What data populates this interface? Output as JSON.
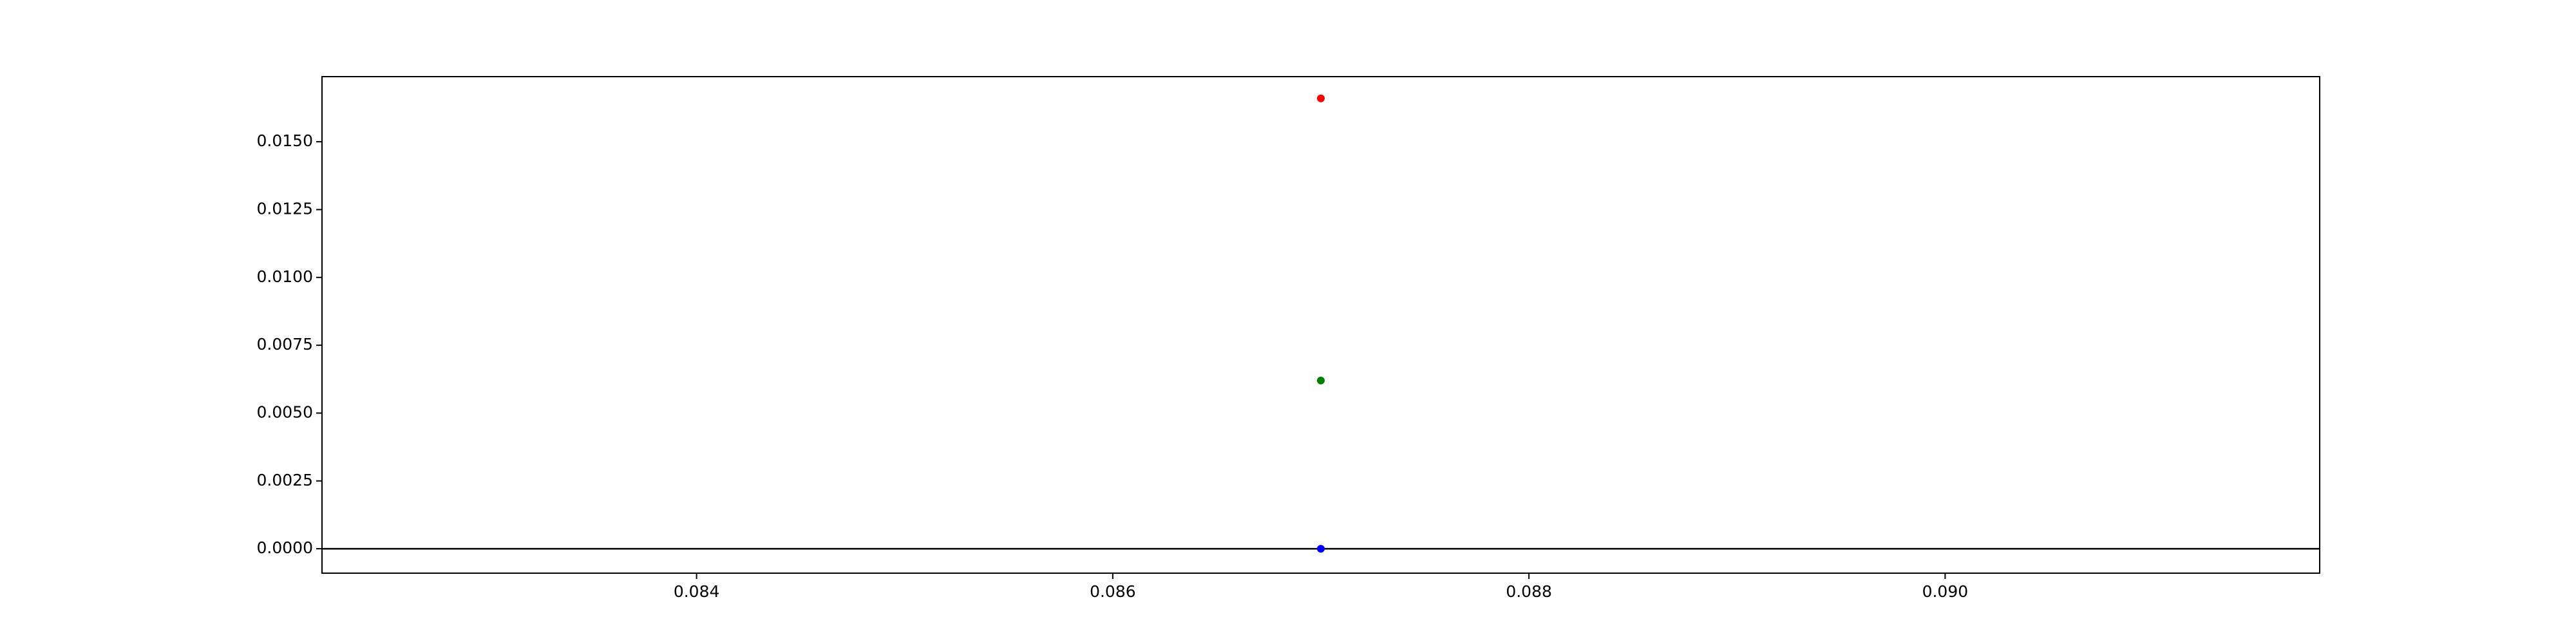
{
  "chart_data": {
    "type": "scatter",
    "title": "",
    "xlabel": "",
    "ylabel": "",
    "xlim": [
      0.0822,
      0.0918
    ],
    "ylim": [
      -0.0009,
      0.0174
    ],
    "x_ticks": [
      {
        "value": 0.084,
        "label": "0.084"
      },
      {
        "value": 0.086,
        "label": "0.086"
      },
      {
        "value": 0.088,
        "label": "0.088"
      },
      {
        "value": 0.09,
        "label": "0.090"
      }
    ],
    "y_ticks": [
      {
        "value": 0.0,
        "label": "0.0000"
      },
      {
        "value": 0.0025,
        "label": "0.0025"
      },
      {
        "value": 0.005,
        "label": "0.0050"
      },
      {
        "value": 0.0075,
        "label": "0.0075"
      },
      {
        "value": 0.01,
        "label": "0.0100"
      },
      {
        "value": 0.0125,
        "label": "0.0125"
      },
      {
        "value": 0.015,
        "label": "0.0150"
      }
    ],
    "grid": false,
    "horizontal_line": {
      "y": 0.0,
      "color": "#000000"
    },
    "series": [
      {
        "color": "#ff0000",
        "points": [
          {
            "x": 0.087,
            "y": 0.0166
          }
        ]
      },
      {
        "color": "#008000",
        "points": [
          {
            "x": 0.087,
            "y": 0.0062
          }
        ]
      },
      {
        "color": "#0000ff",
        "points": [
          {
            "x": 0.087,
            "y": 0.0
          }
        ]
      }
    ]
  }
}
